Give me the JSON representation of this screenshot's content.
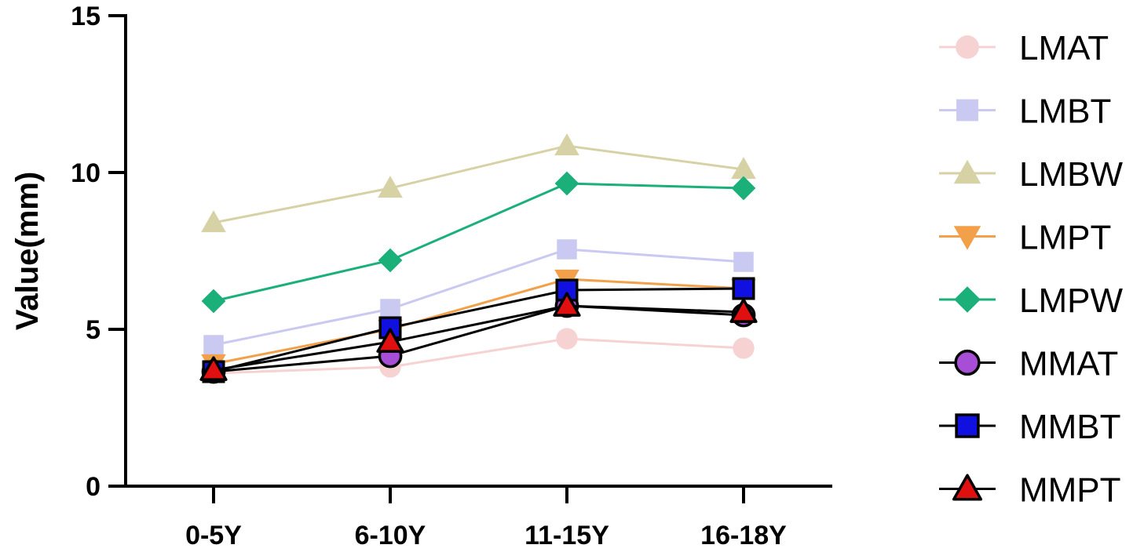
{
  "chart_data": {
    "type": "line",
    "categories": [
      "0-5Y",
      "6-10Y",
      "11-15Y",
      "16-18Y"
    ],
    "ylabel": "Value(mm)",
    "xlabel": "",
    "ylim": [
      0,
      15
    ],
    "yticks": [
      "0",
      "5",
      "10",
      "15"
    ],
    "grid": false,
    "legend_position": "right",
    "series": [
      {
        "name": "LMAT",
        "values": [
          3.6,
          3.8,
          4.7,
          4.4
        ],
        "color": "#F7D2D2",
        "marker": "circle",
        "stroke": "none",
        "marker_fill": "#F7D2D2"
      },
      {
        "name": "LMBT",
        "values": [
          4.5,
          5.65,
          7.55,
          7.15
        ],
        "color": "#C9C9F2",
        "marker": "square",
        "stroke": "none",
        "marker_fill": "#C9C9F2"
      },
      {
        "name": "LMBW",
        "values": [
          8.4,
          9.5,
          10.85,
          10.1
        ],
        "color": "#D6D2A6",
        "marker": "triangle-up",
        "stroke": "none",
        "marker_fill": "#D6D2A6"
      },
      {
        "name": "LMPT",
        "values": [
          3.9,
          5.0,
          6.6,
          6.3
        ],
        "color": "#F2A04A",
        "marker": "triangle-down",
        "stroke": "none",
        "marker_fill": "#F2A04A"
      },
      {
        "name": "LMPW",
        "values": [
          5.9,
          7.2,
          9.65,
          9.5
        ],
        "color": "#1BAF7A",
        "marker": "diamond",
        "stroke": "none",
        "marker_fill": "#1BAF7A"
      },
      {
        "name": "MMAT",
        "values": [
          3.65,
          4.15,
          5.75,
          5.45
        ],
        "color": "#000000",
        "marker": "circle",
        "stroke": "#000000",
        "marker_fill": "#A64FD6"
      },
      {
        "name": "MMBT",
        "values": [
          3.65,
          5.05,
          6.25,
          6.3
        ],
        "color": "#000000",
        "marker": "square",
        "stroke": "#000000",
        "marker_fill": "#1010E0"
      },
      {
        "name": "MMPT",
        "values": [
          3.7,
          4.6,
          5.75,
          5.55
        ],
        "color": "#000000",
        "marker": "triangle-up",
        "stroke": "#000000",
        "marker_fill": "#E01010"
      }
    ]
  }
}
